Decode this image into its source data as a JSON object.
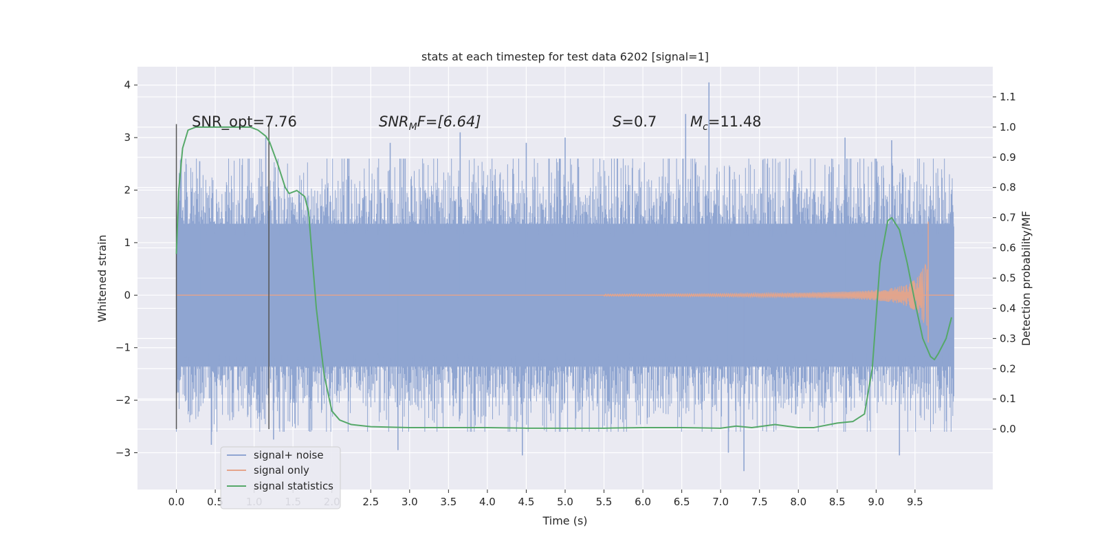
{
  "chart_data": {
    "type": "line",
    "title": "stats at each timestep for test data 6202 [signal=1]",
    "xlabel": "Time (s)",
    "ylabel": "Whitened strain",
    "ylabel_right": "Detection probability/MF",
    "xlim": [
      -0.5,
      10.5
    ],
    "ylim": [
      -3.7,
      4.35
    ],
    "ylim_right": [
      -0.2,
      1.2
    ],
    "x_ticks": [
      "0.0",
      "0.5",
      "1.0",
      "1.5",
      "2.0",
      "2.5",
      "3.0",
      "3.5",
      "4.0",
      "4.5",
      "5.0",
      "5.5",
      "6.0",
      "6.5",
      "7.0",
      "7.5",
      "8.0",
      "8.5",
      "9.0",
      "9.5"
    ],
    "y_ticks_left": [
      "−3",
      "−2",
      "−1",
      "0",
      "1",
      "2",
      "3",
      "4"
    ],
    "y_ticks_right": [
      "0.0",
      "0.1",
      "0.2",
      "0.3",
      "0.4",
      "0.5",
      "0.6",
      "0.7",
      "0.8",
      "0.9",
      "1.0",
      "1.1"
    ],
    "grid": true,
    "legend_placement": "lower-left",
    "annotations": {
      "snr_opt": "SNR_opt=7.76",
      "snr_mf_main": "SNR",
      "snr_mf_sub": "M",
      "snr_mf_rest": "F=[6.64]",
      "s_main": "S",
      "s_rest": "=0.7",
      "mc_main": "M",
      "mc_sub": "c",
      "mc_rest": "=11.48"
    },
    "vertical_markers": [
      0.0,
      1.19
    ],
    "noise_envelope": {
      "x": [
        0.0,
        10.0
      ],
      "typical_band": [
        -1.6,
        1.6
      ],
      "extreme_max": 4.05,
      "extreme_min": -3.35
    },
    "noise_spikes": [
      {
        "x": 0.3,
        "y": 2.55
      },
      {
        "x": 0.45,
        "y": -2.85
      },
      {
        "x": 1.15,
        "y": 3.0
      },
      {
        "x": 1.25,
        "y": -2.75
      },
      {
        "x": 2.75,
        "y": 2.9
      },
      {
        "x": 2.85,
        "y": -2.95
      },
      {
        "x": 3.65,
        "y": 3.1
      },
      {
        "x": 4.45,
        "y": -3.05
      },
      {
        "x": 4.5,
        "y": 2.9
      },
      {
        "x": 5.0,
        "y": 3.0
      },
      {
        "x": 6.55,
        "y": 3.45
      },
      {
        "x": 6.85,
        "y": 4.05
      },
      {
        "x": 7.1,
        "y": -3.0
      },
      {
        "x": 7.3,
        "y": -3.35
      },
      {
        "x": 8.6,
        "y": 3.0
      },
      {
        "x": 9.0,
        "y": 2.6
      },
      {
        "x": 9.2,
        "y": 2.95
      },
      {
        "x": 9.3,
        "y": -3.05
      }
    ],
    "series": [
      {
        "name": "signal+ noise",
        "color": "#8fa5d1",
        "axis": "left",
        "description_values": "dense noise between about -2 and 2.5 from t=0 to t=10 s"
      },
      {
        "name": "signal only",
        "color": "#e5a48a",
        "axis": "left",
        "chirp": {
          "start_time": 5.5,
          "end_time": 9.67,
          "peak_amplitude": 1.4
        }
      },
      {
        "name": "signal statistics",
        "color": "#55a868",
        "axis": "right",
        "x": [
          0.0,
          0.03,
          0.08,
          0.15,
          0.25,
          0.4,
          0.6,
          0.8,
          0.95,
          1.05,
          1.15,
          1.2,
          1.3,
          1.4,
          1.45,
          1.55,
          1.65,
          1.7,
          1.8,
          1.9,
          2.0,
          2.1,
          2.25,
          2.5,
          3.0,
          3.5,
          4.0,
          4.5,
          5.0,
          5.5,
          6.0,
          6.5,
          7.0,
          7.2,
          7.4,
          7.7,
          8.0,
          8.2,
          8.5,
          8.7,
          8.85,
          8.95,
          9.05,
          9.15,
          9.2,
          9.3,
          9.4,
          9.5,
          9.6,
          9.7,
          9.75,
          9.8,
          9.9,
          9.97
        ],
        "y": [
          0.58,
          0.79,
          0.93,
          0.99,
          1.0,
          1.0,
          1.0,
          1.0,
          1.0,
          0.99,
          0.97,
          0.95,
          0.88,
          0.8,
          0.78,
          0.79,
          0.77,
          0.72,
          0.4,
          0.18,
          0.06,
          0.03,
          0.015,
          0.008,
          0.005,
          0.005,
          0.005,
          0.003,
          0.003,
          0.003,
          0.005,
          0.005,
          0.003,
          0.01,
          0.005,
          0.015,
          0.005,
          0.005,
          0.02,
          0.025,
          0.05,
          0.2,
          0.55,
          0.69,
          0.7,
          0.66,
          0.55,
          0.42,
          0.3,
          0.24,
          0.23,
          0.25,
          0.3,
          0.37
        ]
      }
    ]
  }
}
